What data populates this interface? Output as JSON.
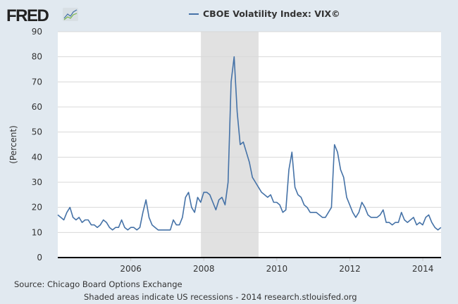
{
  "logo": {
    "text": "FRED"
  },
  "chart_data": {
    "type": "line",
    "title": "CBOE Volatility Index: VIX©",
    "ylabel": "(Percent)",
    "xlabel": "",
    "ylim": [
      0,
      90
    ],
    "xlim": [
      2004.0,
      2014.5
    ],
    "yticks": [
      0,
      10,
      20,
      30,
      40,
      50,
      60,
      70,
      80,
      90
    ],
    "xticks": [
      2006,
      2008,
      2010,
      2012,
      2014
    ],
    "grid": true,
    "recessions": [
      [
        2007.92,
        2009.5
      ]
    ],
    "series": [
      {
        "name": "CBOE Volatility Index: VIX©",
        "color": "#4572a7",
        "start": 2004.0,
        "step_years": 0.0833,
        "values": [
          17,
          16,
          15,
          18,
          20,
          16,
          15,
          16,
          14,
          15,
          15,
          13,
          13,
          12,
          13,
          15,
          14,
          12,
          11,
          12,
          12,
          15,
          12,
          11,
          12,
          12,
          11,
          12,
          18,
          23,
          16,
          13,
          12,
          11,
          11,
          11,
          11,
          11,
          15,
          13,
          13,
          16,
          24,
          26,
          20,
          18,
          24,
          22,
          26,
          26,
          25,
          22,
          19,
          23,
          24,
          21,
          30,
          70,
          80,
          58,
          45,
          46,
          42,
          38,
          32,
          30,
          28,
          26,
          25,
          24,
          25,
          22,
          22,
          21,
          18,
          19,
          35,
          42,
          28,
          25,
          24,
          21,
          20,
          18,
          18,
          18,
          17,
          16,
          16,
          18,
          20,
          45,
          42,
          35,
          32,
          24,
          21,
          18,
          16,
          18,
          22,
          20,
          17,
          16,
          16,
          16,
          17,
          19,
          14,
          14,
          13,
          14,
          14,
          18,
          15,
          14,
          15,
          16,
          13,
          14,
          13,
          16,
          17,
          14,
          12,
          11,
          12
        ]
      }
    ]
  },
  "footer": {
    "source": "Source: Chicago Board Options Exchange",
    "note": "Shaded areas indicate US recessions - 2014 research.stlouisfed.org"
  }
}
